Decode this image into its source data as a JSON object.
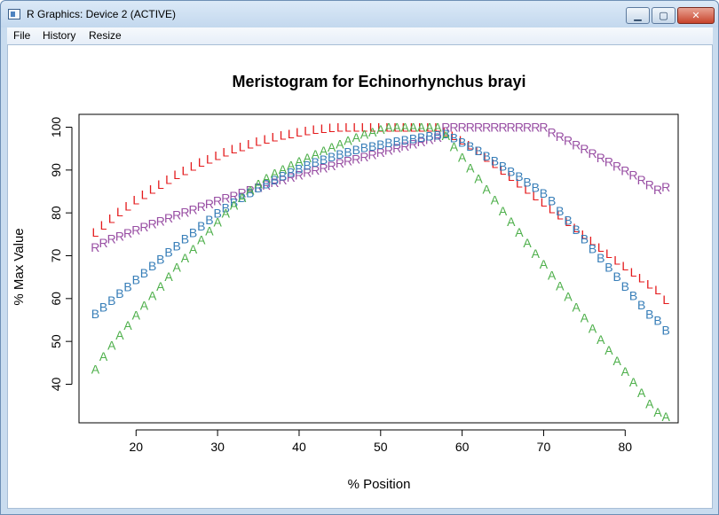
{
  "window": {
    "title": "R Graphics: Device 2 (ACTIVE)",
    "minimize_label": "▁",
    "maximize_label": "▢",
    "close_label": "✕"
  },
  "menu": {
    "file": "File",
    "history": "History",
    "resize": "Resize"
  },
  "chart_data": {
    "type": "scatter",
    "title": "Meristogram for Echinorhynchus brayi",
    "xlabel": "% Position",
    "ylabel": "% Max Value",
    "xlim": [
      13,
      86.5
    ],
    "ylim": [
      31,
      103
    ],
    "x_ticks": [
      20,
      30,
      40,
      50,
      60,
      70,
      80
    ],
    "y_ticks": [
      40,
      50,
      60,
      70,
      80,
      90,
      100
    ],
    "x_tick_labels": [
      "20",
      "30",
      "40",
      "50",
      "60",
      "70",
      "80"
    ],
    "y_tick_labels": [
      "40",
      "50",
      "60",
      "70",
      "80",
      "90",
      "100"
    ],
    "grid": false,
    "x": [
      15,
      16,
      17,
      18,
      19,
      20,
      21,
      22,
      23,
      24,
      25,
      26,
      27,
      28,
      29,
      30,
      31,
      32,
      33,
      34,
      35,
      36,
      37,
      38,
      39,
      40,
      41,
      42,
      43,
      44,
      45,
      46,
      47,
      48,
      49,
      50,
      51,
      52,
      53,
      54,
      55,
      56,
      57,
      58,
      59,
      60,
      61,
      62,
      63,
      64,
      65,
      66,
      67,
      68,
      69,
      70,
      71,
      72,
      73,
      74,
      75,
      76,
      77,
      78,
      79,
      80,
      81,
      82,
      83,
      84,
      85
    ],
    "series": [
      {
        "name": "L",
        "color": "#e41a1c",
        "values": [
          75.5,
          77.1,
          78.7,
          80.2,
          81.6,
          83.0,
          84.3,
          85.5,
          86.7,
          87.8,
          88.9,
          89.9,
          90.9,
          91.8,
          92.6,
          93.4,
          94.2,
          94.9,
          95.5,
          96.1,
          96.7,
          97.2,
          97.7,
          98.1,
          98.5,
          98.9,
          99.2,
          99.5,
          99.7,
          99.9,
          100.0,
          100.0,
          100.0,
          100.0,
          100.0,
          100.0,
          100.0,
          100.0,
          100.0,
          100.0,
          100.0,
          100.0,
          100.0,
          99.0,
          98.0,
          97.0,
          95.9,
          94.5,
          93.0,
          91.5,
          90.0,
          88.5,
          87.0,
          85.5,
          84.0,
          82.5,
          81.0,
          79.5,
          78.0,
          76.5,
          75.0,
          73.5,
          72.0,
          70.5,
          69.0,
          67.6,
          66.2,
          64.8,
          63.4,
          62.0,
          59.8
        ]
      },
      {
        "name": "R",
        "color": "#984ea3",
        "values": [
          72.0,
          73.0,
          73.9,
          74.6,
          75.3,
          76.0,
          76.7,
          77.4,
          78.1,
          78.8,
          79.5,
          80.1,
          80.8,
          81.5,
          82.1,
          82.8,
          83.4,
          84.0,
          84.7,
          85.3,
          85.9,
          86.5,
          87.1,
          87.7,
          88.3,
          88.8,
          89.4,
          90.0,
          90.5,
          91.0,
          91.6,
          92.1,
          92.6,
          93.1,
          93.6,
          94.1,
          94.6,
          95.1,
          95.6,
          96.1,
          96.6,
          97.1,
          97.6,
          100.0,
          100.0,
          100.0,
          100.0,
          100.0,
          100.0,
          100.0,
          100.0,
          100.0,
          100.0,
          100.0,
          100.0,
          100.0,
          98.8,
          97.8,
          96.9,
          95.9,
          94.9,
          93.9,
          92.9,
          91.9,
          90.9,
          89.9,
          88.8,
          87.7,
          86.6,
          85.4,
          86.0
        ]
      },
      {
        "name": "B",
        "color": "#377eb8",
        "values": [
          56.5,
          58.0,
          59.6,
          61.2,
          62.8,
          64.4,
          66.0,
          67.6,
          69.2,
          70.8,
          72.3,
          73.9,
          75.4,
          76.9,
          78.4,
          79.9,
          81.2,
          82.4,
          83.6,
          84.7,
          85.8,
          86.8,
          87.7,
          88.6,
          89.5,
          90.3,
          91.1,
          91.8,
          92.5,
          93.1,
          93.7,
          94.2,
          94.7,
          95.2,
          95.6,
          96.0,
          96.4,
          96.7,
          97.0,
          97.3,
          97.6,
          97.9,
          98.1,
          98.5,
          97.5,
          96.5,
          95.6,
          94.5,
          93.3,
          92.1,
          90.9,
          89.7,
          88.5,
          87.2,
          85.9,
          84.6,
          82.8,
          80.5,
          78.3,
          76.1,
          73.9,
          71.7,
          69.5,
          67.3,
          65.1,
          62.9,
          60.7,
          58.5,
          56.3,
          54.9,
          52.6
        ]
      },
      {
        "name": "A",
        "color": "#4daf4a",
        "values": [
          43.5,
          46.5,
          49.1,
          51.5,
          53.8,
          56.1,
          58.4,
          60.7,
          62.9,
          65.1,
          67.3,
          69.5,
          71.6,
          73.7,
          75.8,
          77.9,
          79.9,
          81.8,
          83.6,
          85.3,
          86.8,
          88.1,
          89.2,
          90.2,
          91.1,
          92.0,
          92.9,
          93.7,
          94.5,
          95.3,
          96.1,
          96.9,
          97.6,
          98.3,
          98.9,
          99.5,
          100.0,
          100.0,
          100.0,
          100.0,
          100.0,
          100.0,
          100.0,
          98.0,
          95.5,
          93.0,
          90.5,
          88.0,
          85.5,
          83.0,
          80.5,
          78.0,
          75.5,
          73.0,
          70.5,
          68.0,
          65.5,
          63.0,
          60.5,
          58.0,
          55.5,
          53.0,
          50.5,
          48.0,
          45.5,
          43.0,
          40.5,
          38.0,
          35.5,
          33.5,
          32.5
        ]
      }
    ]
  }
}
